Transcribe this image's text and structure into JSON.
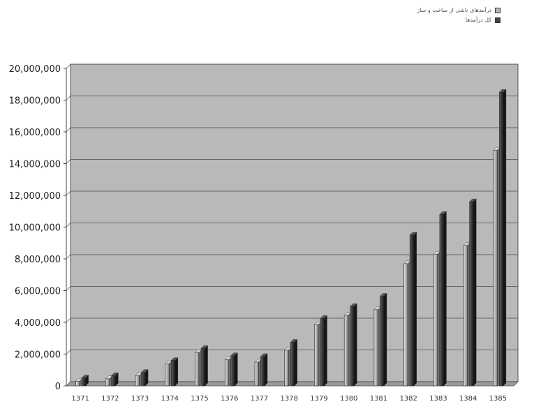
{
  "chart_data": {
    "type": "bar",
    "categories": [
      "1371",
      "1372",
      "1373",
      "1374",
      "1375",
      "1376",
      "1377",
      "1378",
      "1379",
      "1380",
      "1381",
      "1382",
      "1383",
      "1384",
      "1385"
    ],
    "series": [
      {
        "name": "درآمدهای ناشی از ساخت و ساز",
        "values": [
          300000,
          450000,
          650000,
          1400000,
          2100000,
          1650000,
          1500000,
          2250000,
          3850000,
          4450000,
          4800000,
          7700000,
          8300000,
          8850000,
          14850000
        ],
        "color": "#b4b4b4"
      },
      {
        "name": "کل درآمدها",
        "values": [
          500000,
          650000,
          850000,
          1600000,
          2350000,
          1900000,
          1850000,
          2750000,
          4250000,
          5000000,
          5650000,
          9500000,
          10800000,
          11600000,
          18500000
        ],
        "color": "#3d3d3d"
      }
    ],
    "y_ticks": [
      "0",
      "2,000,000",
      "4,000,000",
      "6,000,000",
      "8,000,000",
      "10,000,000",
      "12,000,000",
      "14,000,000",
      "16,000,000",
      "18,000,000",
      "20,000,000"
    ],
    "ylim": [
      0,
      20000000
    ],
    "grid": true,
    "legend": "top-right",
    "plot_background": "#b9b9b9"
  }
}
